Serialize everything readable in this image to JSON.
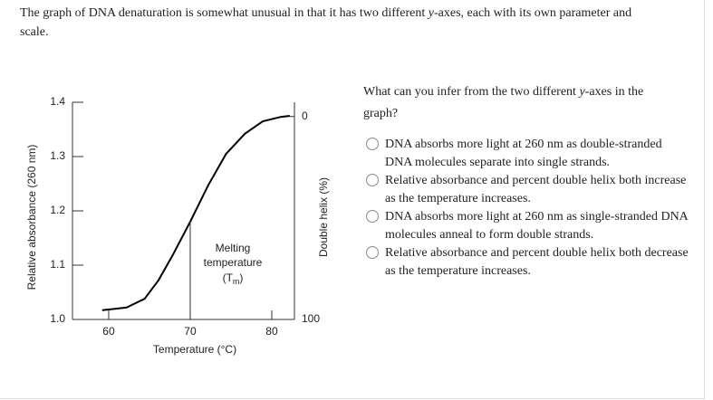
{
  "intro": [
    "The graph of DNA denaturation is somewhat unusual in that it has two different ",
    "y",
    "-axes, each with its own parameter and scale."
  ],
  "chart_data": {
    "type": "line",
    "xlabel": "Temperature (°C)",
    "ylabel": "Relative absorbance (260 nm)",
    "y2label": "Double helix (%)",
    "xlim": [
      55.56,
      82.78
    ],
    "xticks": [
      60,
      70,
      80
    ],
    "ylim": [
      1.0,
      1.4
    ],
    "yticks": [
      {
        "value": 1.0,
        "label": "1.0"
      },
      1.1,
      1.2,
      1.3,
      1.4
    ],
    "y2lim": [
      100,
      -7
    ],
    "y2ticks": [
      0,
      100
    ],
    "x": [
      59.2,
      62.2,
      64.4,
      66.1,
      67.8,
      70,
      72.2,
      74.4,
      76.7,
      78.9,
      81.1,
      82.2
    ],
    "series": [
      {
        "color": "#000000",
        "values": [
          1.017,
          1.022,
          1.038,
          1.072,
          1.117,
          1.18,
          1.247,
          1.305,
          1.342,
          1.365,
          1.373,
          1.375
        ]
      }
    ],
    "annotation": {
      "lines": [
        "Melting",
        "temperature"
      ],
      "symbol": [
        "(T",
        "m",
        ")"
      ],
      "x": 70
    }
  },
  "question": [
    "What can you infer from the two different ",
    "y",
    "-axes in the graph?"
  ],
  "options": [
    "DNA absorbs more light at 260 nm as double-stranded DNA molecules separate into single strands.",
    "Relative absorbance and percent double helix both increase as the temperature increases.",
    "DNA absorbs more light at 260 nm as single-stranded DNA molecules anneal to form double strands.",
    "Relative absorbance and percent double helix both decrease as the temperature increases."
  ]
}
